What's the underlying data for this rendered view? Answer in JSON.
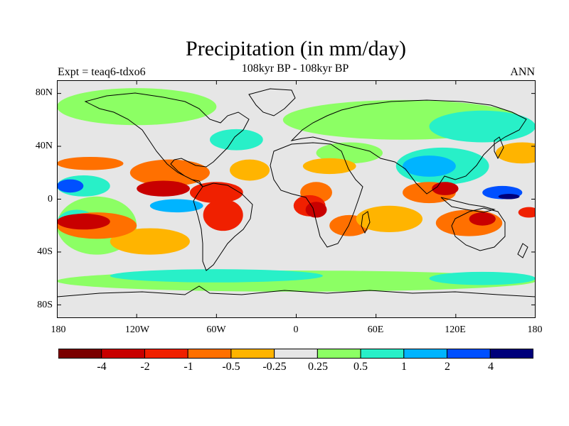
{
  "title": "Precipitation (in mm/day)",
  "subtitle": "108kyr BP - 108kyr BP",
  "left_label": "Expt = teaq6-tdxo6",
  "right_label": "ANN",
  "map": {
    "projection": "cylindrical equidistant",
    "lat_ticks": [
      "80N",
      "40N",
      "0",
      "40S",
      "80S"
    ],
    "lon_ticks": [
      "180",
      "120W",
      "60W",
      "0",
      "60E",
      "120E",
      "180"
    ],
    "background_color": "#e6e6e6"
  },
  "colorbar": {
    "colors": [
      "#7a0000",
      "#c80000",
      "#f02000",
      "#ff7000",
      "#ffb400",
      "#e6e6e6",
      "#8cff64",
      "#28f0c8",
      "#00b4ff",
      "#0050ff",
      "#00007a"
    ],
    "labels": [
      "-4",
      "-2",
      "-1",
      "-0.5",
      "-0.25",
      "0.25",
      "0.5",
      "1",
      "2",
      "4"
    ]
  },
  "contour_blobs": [
    {
      "color": "#8cff64",
      "lon": -120,
      "lat": 70,
      "rx": 60,
      "ry": 14
    },
    {
      "color": "#8cff64",
      "lon": 80,
      "lat": 60,
      "rx": 90,
      "ry": 15
    },
    {
      "color": "#28f0c8",
      "lon": 140,
      "lat": 55,
      "rx": 40,
      "ry": 12
    },
    {
      "color": "#8cff64",
      "lon": 0,
      "lat": -62,
      "rx": 180,
      "ry": 8
    },
    {
      "color": "#28f0c8",
      "lon": -60,
      "lat": -58,
      "rx": 80,
      "ry": 5
    },
    {
      "color": "#28f0c8",
      "lon": 140,
      "lat": -60,
      "rx": 40,
      "ry": 5
    },
    {
      "color": "#8cff64",
      "lon": -150,
      "lat": -20,
      "rx": 30,
      "ry": 22
    },
    {
      "color": "#28f0c8",
      "lon": -165,
      "lat": -18,
      "rx": 15,
      "ry": 10
    },
    {
      "color": "#28f0c8",
      "lon": -160,
      "lat": 10,
      "rx": 20,
      "ry": 8
    },
    {
      "color": "#0050ff",
      "lon": -170,
      "lat": 10,
      "rx": 10,
      "ry": 5
    },
    {
      "color": "#0050ff",
      "lon": -165,
      "lat": -18,
      "rx": 15,
      "ry": 4
    },
    {
      "color": "#28f0c8",
      "lon": 110,
      "lat": 25,
      "rx": 35,
      "ry": 14
    },
    {
      "color": "#00b4ff",
      "lon": 100,
      "lat": 25,
      "rx": 20,
      "ry": 8
    },
    {
      "color": "#8cff64",
      "lon": 40,
      "lat": 35,
      "rx": 25,
      "ry": 8
    },
    {
      "color": "#ff7000",
      "lon": -155,
      "lat": 27,
      "rx": 25,
      "ry": 5
    },
    {
      "color": "#ffb400",
      "lon": -110,
      "lat": -32,
      "rx": 30,
      "ry": 10
    },
    {
      "color": "#ff7000",
      "lon": -150,
      "lat": -20,
      "rx": 30,
      "ry": 10
    },
    {
      "color": "#c80000",
      "lon": -160,
      "lat": -17,
      "rx": 20,
      "ry": 6
    },
    {
      "color": "#ff7000",
      "lon": -95,
      "lat": 20,
      "rx": 30,
      "ry": 10
    },
    {
      "color": "#c80000",
      "lon": -100,
      "lat": 8,
      "rx": 20,
      "ry": 6
    },
    {
      "color": "#f02000",
      "lon": -60,
      "lat": 5,
      "rx": 20,
      "ry": 8
    },
    {
      "color": "#f02000",
      "lon": -55,
      "lat": -12,
      "rx": 15,
      "ry": 12
    },
    {
      "color": "#ffb400",
      "lon": -35,
      "lat": 22,
      "rx": 15,
      "ry": 8
    },
    {
      "color": "#ffb400",
      "lon": 25,
      "lat": 25,
      "rx": 20,
      "ry": 6
    },
    {
      "color": "#ff7000",
      "lon": 15,
      "lat": 5,
      "rx": 12,
      "ry": 8
    },
    {
      "color": "#f02000",
      "lon": 10,
      "lat": -5,
      "rx": 12,
      "ry": 8
    },
    {
      "color": "#c80000",
      "lon": 15,
      "lat": -8,
      "rx": 8,
      "ry": 6
    },
    {
      "color": "#ff7000",
      "lon": 40,
      "lat": -20,
      "rx": 15,
      "ry": 8
    },
    {
      "color": "#ffb400",
      "lon": 70,
      "lat": -15,
      "rx": 25,
      "ry": 10
    },
    {
      "color": "#ff7000",
      "lon": 100,
      "lat": 5,
      "rx": 20,
      "ry": 8
    },
    {
      "color": "#c80000",
      "lon": 112,
      "lat": 8,
      "rx": 10,
      "ry": 5
    },
    {
      "color": "#ff7000",
      "lon": 130,
      "lat": -18,
      "rx": 25,
      "ry": 10
    },
    {
      "color": "#c80000",
      "lon": 140,
      "lat": -15,
      "rx": 10,
      "ry": 5
    },
    {
      "color": "#ffb400",
      "lon": 170,
      "lat": 35,
      "rx": 20,
      "ry": 8
    },
    {
      "color": "#0050ff",
      "lon": 155,
      "lat": 5,
      "rx": 15,
      "ry": 5
    },
    {
      "color": "#00007a",
      "lon": 160,
      "lat": 2,
      "rx": 8,
      "ry": 2
    },
    {
      "color": "#f02000",
      "lon": 175,
      "lat": -10,
      "rx": 8,
      "ry": 4
    },
    {
      "color": "#00b4ff",
      "lon": -90,
      "lat": -5,
      "rx": 20,
      "ry": 5
    },
    {
      "color": "#28f0c8",
      "lon": -45,
      "lat": 45,
      "rx": 20,
      "ry": 8
    }
  ]
}
